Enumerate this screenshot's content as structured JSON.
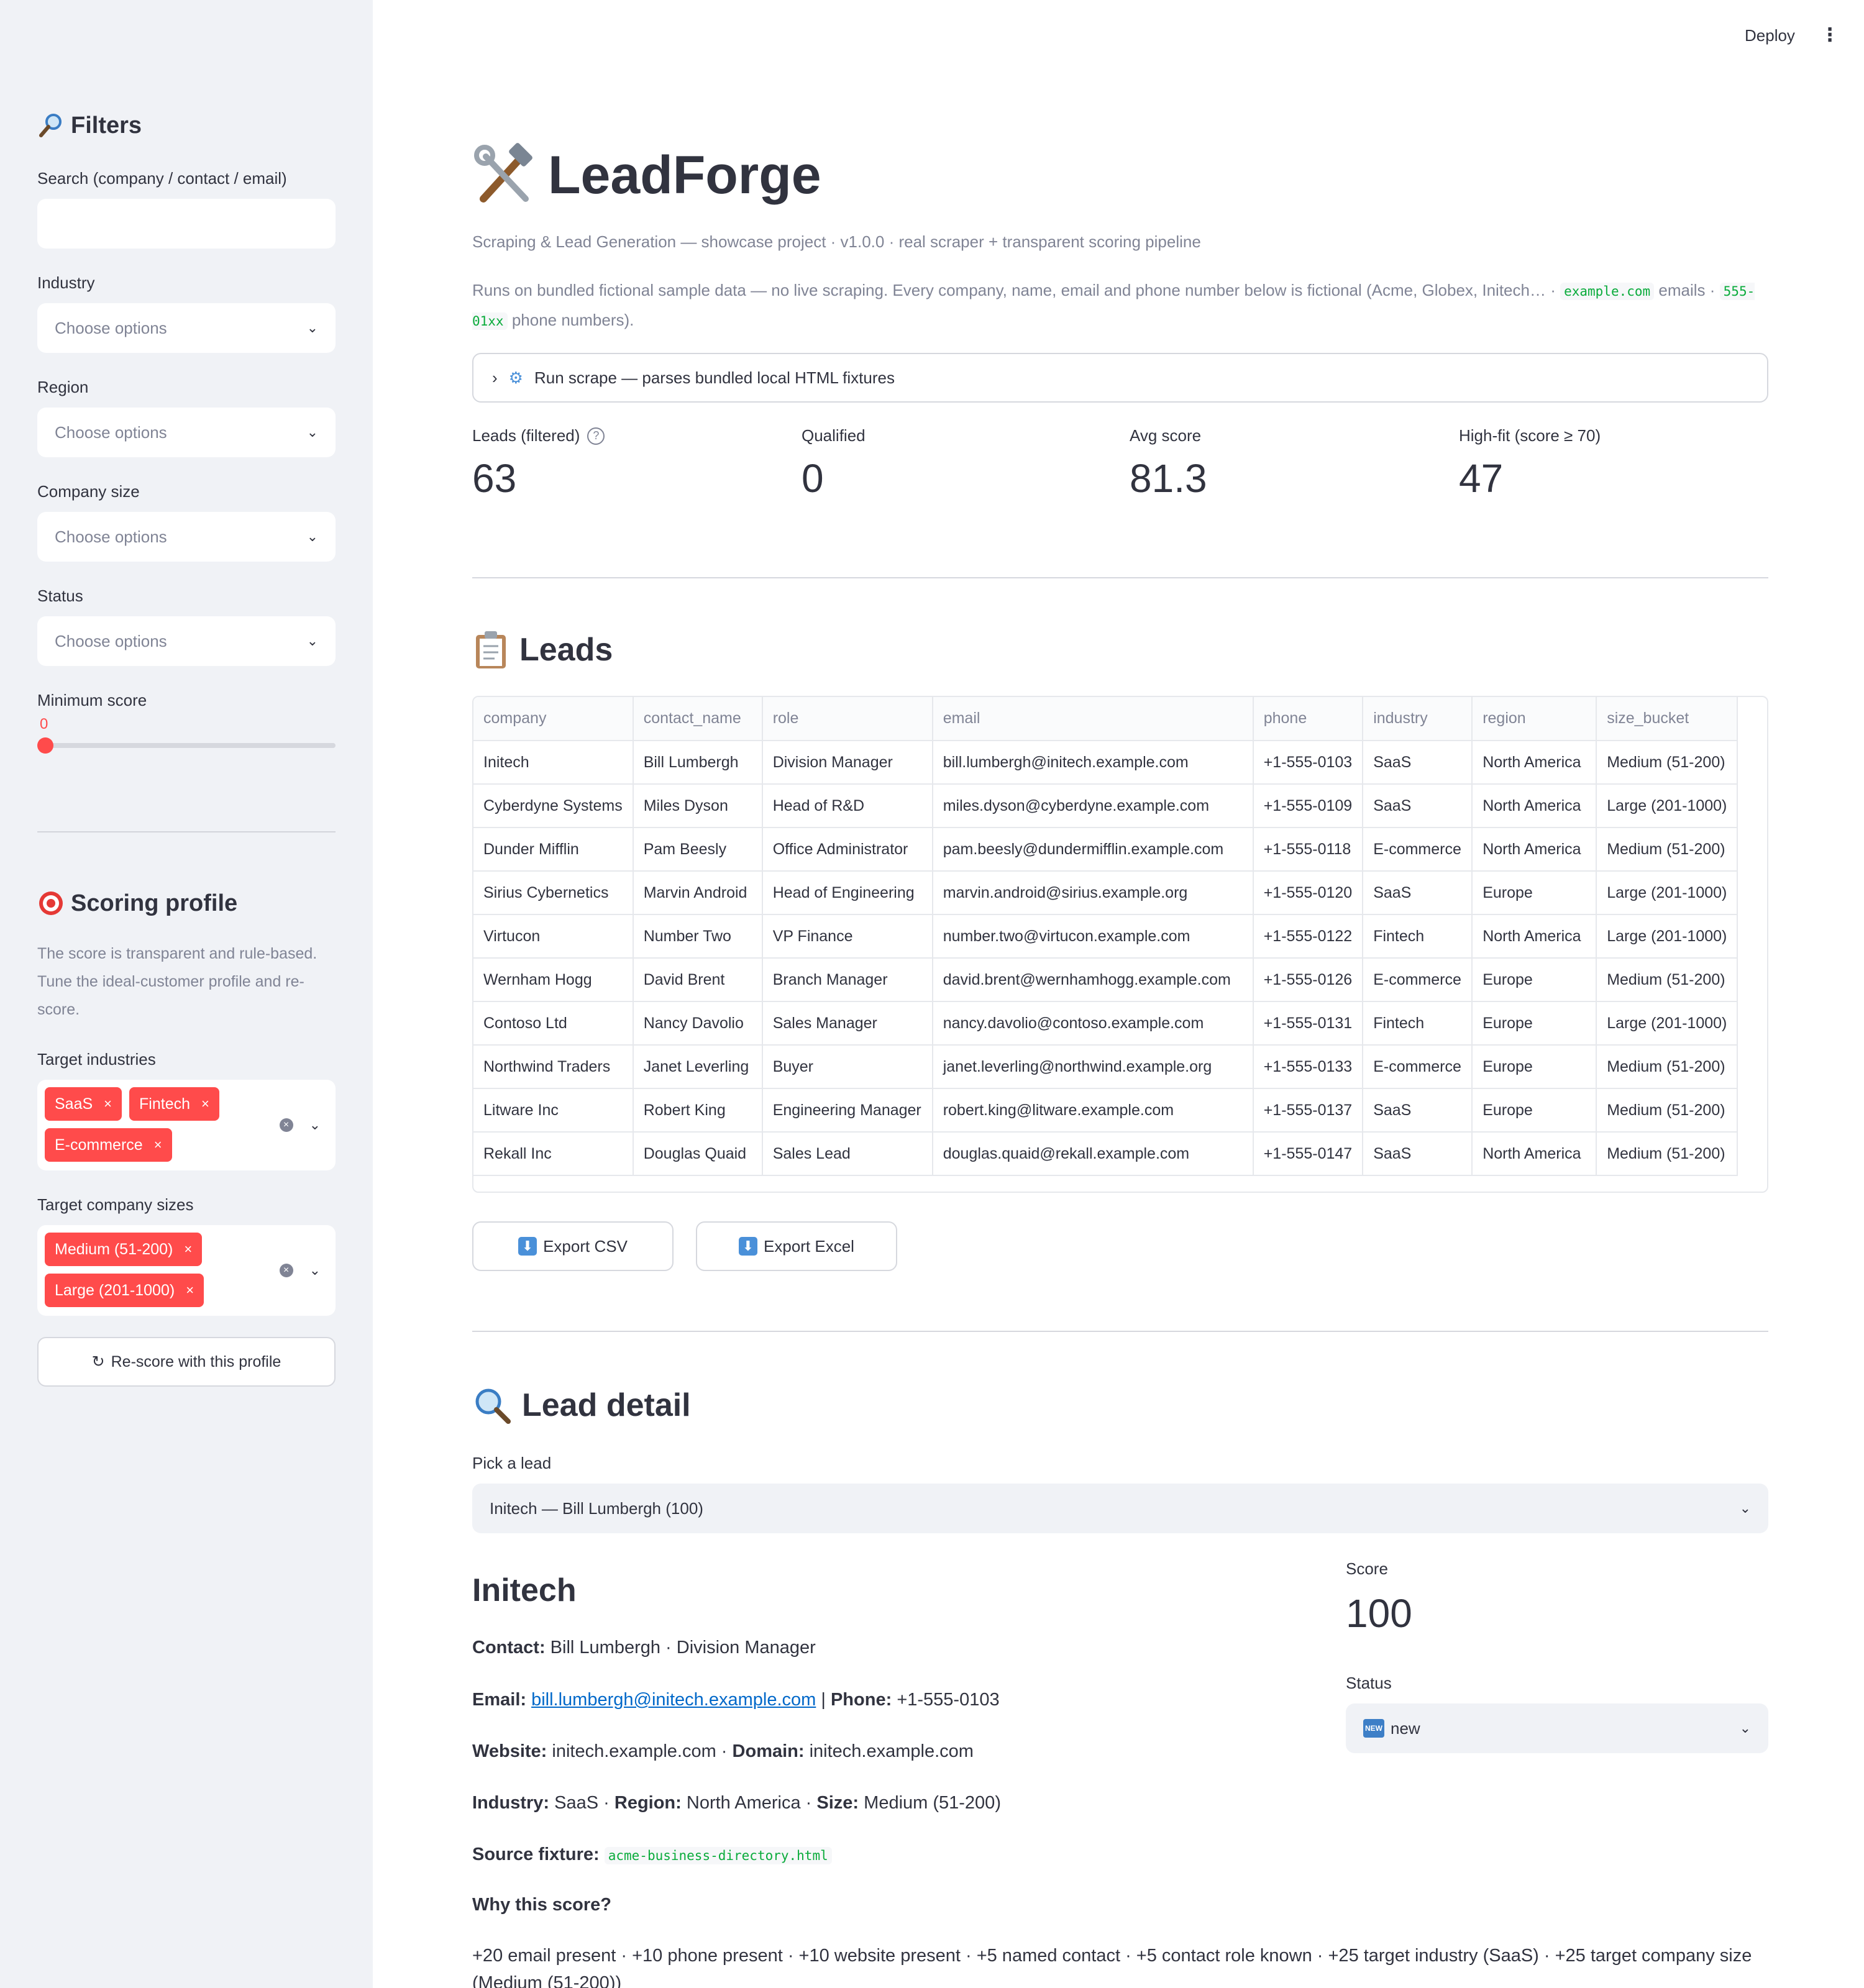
{
  "header": {
    "deploy_label": "Deploy",
    "menu_icon": "kebab-menu-icon"
  },
  "sidebar": {
    "filters_title": "Filters",
    "search_label": "Search (company / contact / email)",
    "search_value": "",
    "industry_label": "Industry",
    "industry_placeholder": "Choose options",
    "region_label": "Region",
    "region_placeholder": "Choose options",
    "size_label": "Company size",
    "size_placeholder": "Choose options",
    "status_label": "Status",
    "status_placeholder": "Choose options",
    "min_score_label": "Minimum score",
    "min_score_value": "0",
    "scoring_title": "Scoring profile",
    "scoring_desc": "The score is transparent and rule-based. Tune the ideal-customer profile and re-score.",
    "target_industries_label": "Target industries",
    "target_industries": [
      "SaaS",
      "Fintech",
      "E-commerce"
    ],
    "target_sizes_label": "Target company sizes",
    "target_sizes": [
      "Medium (51-200)",
      "Large (201-1000)"
    ],
    "rescore_label": "Re-score with this profile"
  },
  "main": {
    "title": "LeadForge",
    "subtitle": "Scraping & Lead Generation — showcase project · v1.0.0 · real scraper + transparent scoring pipeline",
    "info_prefix": "Runs on bundled fictional sample data — no live scraping. Every company, name, email and phone number below is fictional (Acme, Globex, Initech… ·",
    "info_code1": "example.com",
    "info_mid": "emails ·",
    "info_code2": "555-01xx",
    "info_suffix": "phone numbers).",
    "expander_label": "Run scrape — parses bundled local HTML fixtures",
    "metrics": [
      {
        "label": "Leads (filtered)",
        "value": "63",
        "help": true
      },
      {
        "label": "Qualified",
        "value": "0"
      },
      {
        "label": "Avg score",
        "value": "81.3"
      },
      {
        "label": "High-fit (score ≥ 70)",
        "value": "47"
      }
    ],
    "leads_title": "Leads",
    "export_csv": "Export CSV",
    "export_excel": "Export Excel",
    "detail_title": "Lead detail",
    "pick_label": "Pick a lead",
    "pick_value": "Initech — Bill Lumbergh (100)"
  },
  "table": {
    "columns": [
      "company",
      "contact_name",
      "role",
      "email",
      "phone",
      "industry",
      "region",
      "size_bucket"
    ],
    "rows": [
      [
        "Initech",
        "Bill Lumbergh",
        "Division Manager",
        "bill.lumbergh@initech.example.com",
        "+1-555-0103",
        "SaaS",
        "North America",
        "Medium (51-200)"
      ],
      [
        "Cyberdyne Systems",
        "Miles Dyson",
        "Head of R&D",
        "miles.dyson@cyberdyne.example.com",
        "+1-555-0109",
        "SaaS",
        "North America",
        "Large (201-1000)"
      ],
      [
        "Dunder Mifflin",
        "Pam Beesly",
        "Office Administrator",
        "pam.beesly@dundermifflin.example.com",
        "+1-555-0118",
        "E-commerce",
        "North America",
        "Medium (51-200)"
      ],
      [
        "Sirius Cybernetics",
        "Marvin Android",
        "Head of Engineering",
        "marvin.android@sirius.example.org",
        "+1-555-0120",
        "SaaS",
        "Europe",
        "Large (201-1000)"
      ],
      [
        "Virtucon",
        "Number Two",
        "VP Finance",
        "number.two@virtucon.example.com",
        "+1-555-0122",
        "Fintech",
        "North America",
        "Large (201-1000)"
      ],
      [
        "Wernham Hogg",
        "David Brent",
        "Branch Manager",
        "david.brent@wernhamhogg.example.com",
        "+1-555-0126",
        "E-commerce",
        "Europe",
        "Medium (51-200)"
      ],
      [
        "Contoso Ltd",
        "Nancy Davolio",
        "Sales Manager",
        "nancy.davolio@contoso.example.com",
        "+1-555-0131",
        "Fintech",
        "Europe",
        "Large (201-1000)"
      ],
      [
        "Northwind Traders",
        "Janet Leverling",
        "Buyer",
        "janet.leverling@northwind.example.org",
        "+1-555-0133",
        "E-commerce",
        "Europe",
        "Medium (51-200)"
      ],
      [
        "Litware Inc",
        "Robert King",
        "Engineering Manager",
        "robert.king@litware.example.com",
        "+1-555-0137",
        "SaaS",
        "Europe",
        "Medium (51-200)"
      ],
      [
        "Rekall Inc",
        "Douglas Quaid",
        "Sales Lead",
        "douglas.quaid@rekall.example.com",
        "+1-555-0147",
        "SaaS",
        "North America",
        "Medium (51-200)"
      ]
    ]
  },
  "detail": {
    "company": "Initech",
    "contact_label": "Contact:",
    "contact_value": "Bill Lumbergh · Division Manager",
    "email_label": "Email:",
    "email_value": "bill.lumbergh@initech.example.com",
    "phone_label": "Phone:",
    "phone_value": "+1-555-0103",
    "website_label": "Website:",
    "website_value": "initech.example.com",
    "domain_label": "Domain:",
    "domain_value": "initech.example.com",
    "industry_label": "Industry:",
    "industry_value": "SaaS",
    "region_label": "Region:",
    "region_value": "North America",
    "size_label": "Size:",
    "size_value": "Medium (51-200)",
    "source_label": "Source fixture:",
    "source_value": "acme-business-directory.html",
    "why_label": "Why this score?",
    "why_value": "+20 email present · +10 phone present · +10 website present · +5 named contact · +5 contact role known · +25 target industry (SaaS) · +25 target company size (Medium (51-200))",
    "score_label": "Score",
    "score_value": "100",
    "status_label": "Status",
    "status_value": "new"
  }
}
